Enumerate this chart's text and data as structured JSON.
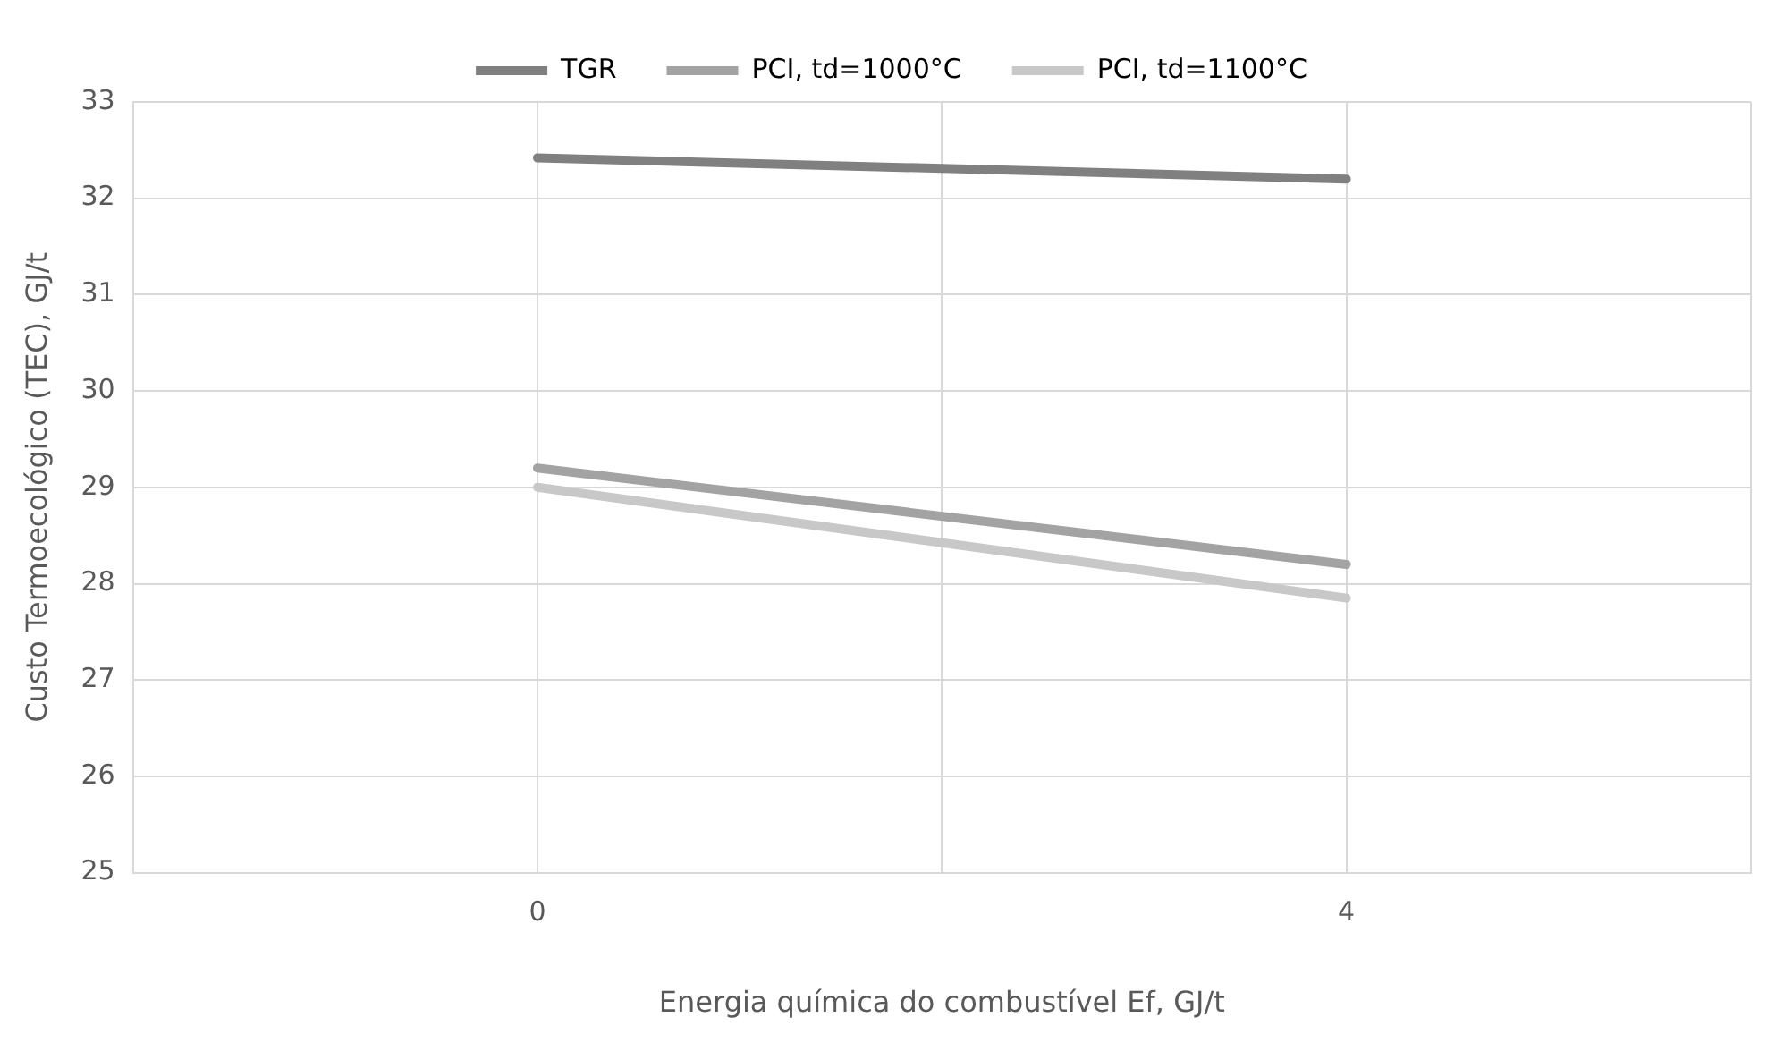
{
  "chart_data": {
    "type": "line",
    "xlabel": "Energia química do combustível Ef, GJ/t",
    "ylabel": "Custo Termoecológico (TEC), GJ/t",
    "x": [
      0,
      4
    ],
    "series": [
      {
        "name": "TGR",
        "color": "#808080",
        "values": [
          32.42,
          32.2
        ]
      },
      {
        "name": "PCI, td=1000°C",
        "color": "#a3a3a3",
        "values": [
          29.2,
          28.2
        ]
      },
      {
        "name": "PCI, td=1100°C",
        "color": "#c8c8c8",
        "values": [
          29.0,
          27.85
        ]
      }
    ],
    "xlim": [
      -2,
      6
    ],
    "xticks": [
      {
        "value": -2,
        "label": null
      },
      0,
      {
        "value": 2,
        "label": null
      },
      4,
      {
        "value": 6,
        "label": null
      }
    ],
    "ylim": [
      25,
      33
    ],
    "yticks": [
      25,
      26,
      27,
      28,
      29,
      30,
      31,
      32,
      33
    ],
    "grid": true,
    "legend": "top",
    "marker": "none",
    "line_style": "solid"
  }
}
